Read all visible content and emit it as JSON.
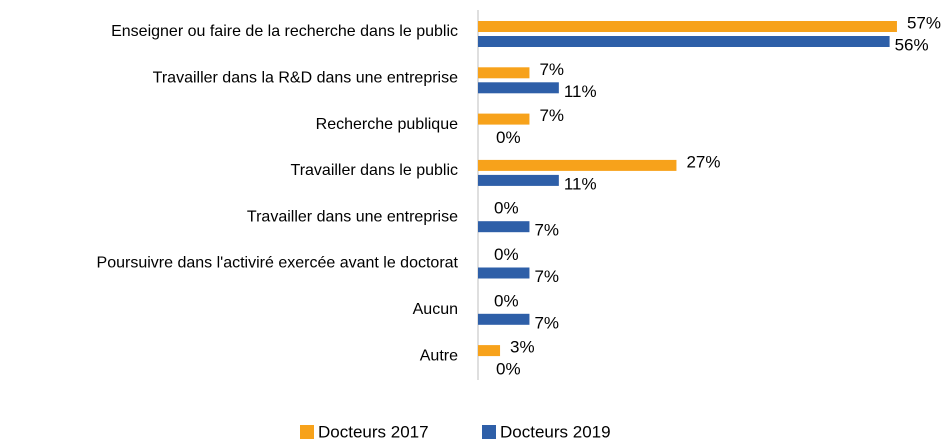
{
  "chart_data": {
    "type": "bar",
    "orientation": "horizontal",
    "categories": [
      "Enseigner ou faire de la recherche dans le public",
      "Travailler dans la R&D dans une entreprise",
      "Recherche publique",
      "Travailler dans le public",
      "Travailler dans une entreprise",
      "Poursuivre dans l'activiré exercée avant le doctorat",
      "Aucun",
      "Autre"
    ],
    "series": [
      {
        "name": "Docteurs 2017",
        "color": "#f7a21b",
        "values": [
          57,
          7,
          7,
          27,
          0,
          0,
          0,
          3
        ],
        "value_labels": [
          "57%",
          "7%",
          "7%",
          "27%",
          "0%",
          "0%",
          "0%",
          "3%"
        ]
      },
      {
        "name": "Docteurs 2019",
        "color": "#2e5fa8",
        "values": [
          56,
          11,
          0,
          11,
          7,
          7,
          7,
          0
        ],
        "value_labels": [
          "56%",
          "11%",
          "0%",
          "11%",
          "7%",
          "7%",
          "7%",
          "0%"
        ]
      }
    ],
    "legend": "bottom"
  }
}
